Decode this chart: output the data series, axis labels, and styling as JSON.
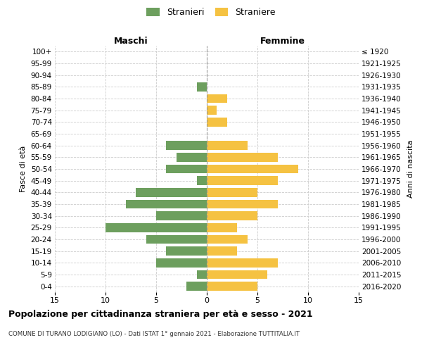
{
  "age_groups": [
    "100+",
    "95-99",
    "90-94",
    "85-89",
    "80-84",
    "75-79",
    "70-74",
    "65-69",
    "60-64",
    "55-59",
    "50-54",
    "45-49",
    "40-44",
    "35-39",
    "30-34",
    "25-29",
    "20-24",
    "15-19",
    "10-14",
    "5-9",
    "0-4"
  ],
  "birth_years": [
    "≤ 1920",
    "1921-1925",
    "1926-1930",
    "1931-1935",
    "1936-1940",
    "1941-1945",
    "1946-1950",
    "1951-1955",
    "1956-1960",
    "1961-1965",
    "1966-1970",
    "1971-1975",
    "1976-1980",
    "1981-1985",
    "1986-1990",
    "1991-1995",
    "1996-2000",
    "2001-2005",
    "2006-2010",
    "2011-2015",
    "2016-2020"
  ],
  "males": [
    0,
    0,
    0,
    1,
    0,
    0,
    0,
    0,
    4,
    3,
    4,
    1,
    7,
    8,
    5,
    10,
    6,
    4,
    5,
    1,
    2
  ],
  "females": [
    0,
    0,
    0,
    0,
    2,
    1,
    2,
    0,
    4,
    7,
    9,
    7,
    5,
    7,
    5,
    3,
    4,
    3,
    7,
    6,
    5
  ],
  "male_color": "#6d9f5e",
  "female_color": "#f5c242",
  "xlim": 15,
  "title": "Popolazione per cittadinanza straniera per età e sesso - 2021",
  "subtitle": "COMUNE DI TURANO LODIGIANO (LO) - Dati ISTAT 1° gennaio 2021 - Elaborazione TUTTITALIA.IT",
  "legend_male": "Stranieri",
  "legend_female": "Straniere",
  "ylabel_left": "Fasce di età",
  "ylabel_right": "Anni di nascita",
  "header_left": "Maschi",
  "header_right": "Femmine",
  "background_color": "#ffffff",
  "grid_color": "#cccccc"
}
